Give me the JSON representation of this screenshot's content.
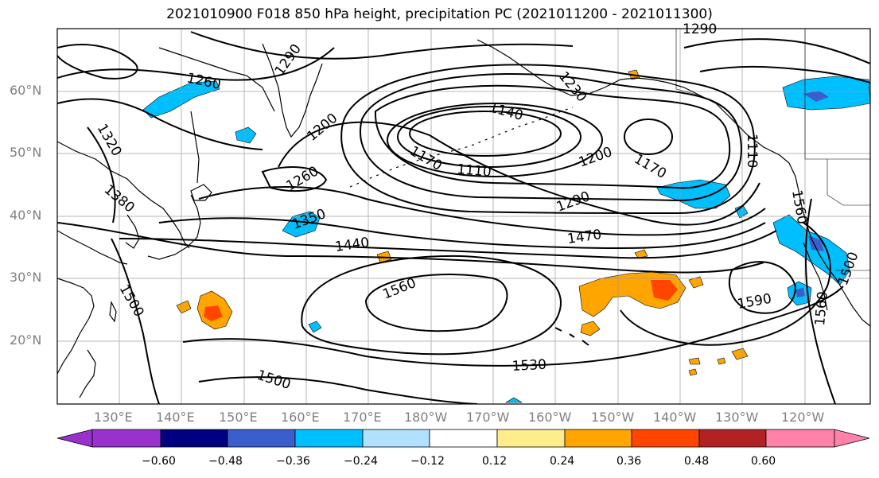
{
  "title": "2021010900 F018 850 hPa height, precipitation PC (2021011200 - 2021011300)",
  "map": {
    "lat_ticks": [
      "60°N",
      "50°N",
      "40°N",
      "30°N",
      "20°N"
    ],
    "lon_ticks": [
      "130°E",
      "140°E",
      "150°E",
      "160°E",
      "170°E",
      "180°W",
      "170°W",
      "160°W",
      "150°W",
      "140°W",
      "130°W",
      "120°W"
    ],
    "contour_labels": [
      "1260",
      "1290",
      "1230",
      "1140",
      "1290",
      "1320",
      "1200",
      "1170",
      "1110",
      "1200",
      "1170",
      "1110",
      "1260",
      "1380",
      "1290",
      "1350",
      "1470",
      "1440",
      "1560",
      "1560",
      "1500",
      "1500",
      "1590",
      "1560",
      "1530",
      "1500"
    ]
  },
  "colorbar": {
    "labels": [
      "−0.60",
      "−0.48",
      "−0.36",
      "−0.24",
      "−0.12",
      "0.12",
      "0.24",
      "0.36",
      "0.48",
      "0.60"
    ],
    "colors": [
      "#9932cc",
      "#000080",
      "#3a5fcd",
      "#00bfff",
      "#b0e2ff",
      "#ffffff",
      "#ffec8b",
      "#ffa500",
      "#ff4500",
      "#b22222",
      "#ff82ab"
    ]
  },
  "colors": {
    "precip_pos_light": "#ffec8b",
    "precip_pos": "#ffa500",
    "precip_pos_strong": "#ff4500",
    "precip_neg": "#00bfff",
    "precip_neg_strong": "#3a5fcd",
    "precip_neg_max": "#9932cc"
  }
}
